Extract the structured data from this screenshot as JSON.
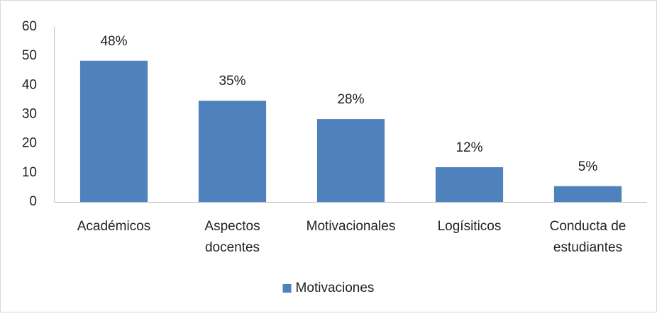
{
  "chart_data": {
    "type": "bar",
    "categories": [
      "Académicos",
      "Aspectos docentes",
      "Motivacionales",
      "Logísiticos",
      "Conducta de estudiantes"
    ],
    "series": [
      {
        "name": "Motivaciones",
        "color": "#4f81bd",
        "values": [
          48.4,
          34.7,
          28.4,
          11.9,
          5.4
        ],
        "value_labels": [
          "48%",
          "35%",
          "28%",
          "12%",
          "5%"
        ]
      }
    ],
    "ylim": [
      0,
      60
    ],
    "yticks": [
      0,
      10,
      20,
      30,
      40,
      50,
      60
    ],
    "grid": false,
    "legend": "bottom"
  }
}
